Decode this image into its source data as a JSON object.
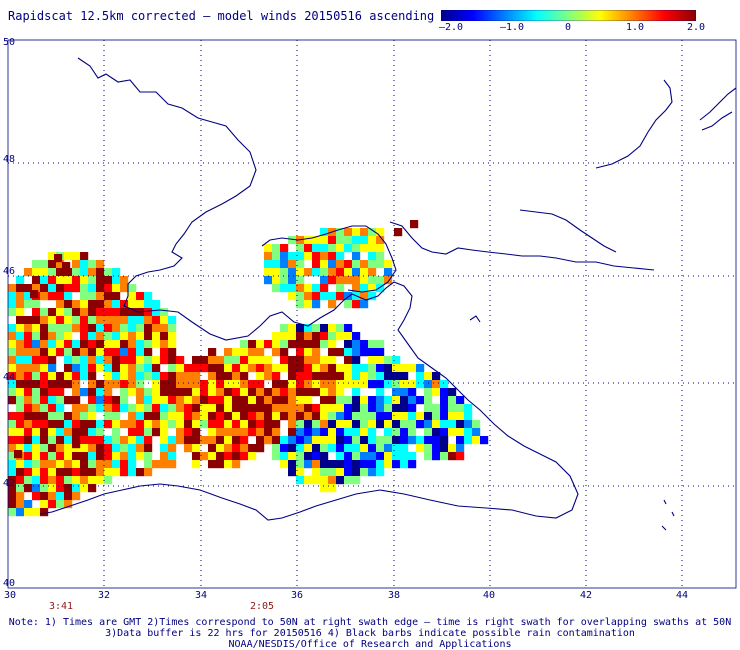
{
  "title": "Rapidscat 12.5km corrected – model winds 20150516 ascending",
  "colorbar": {
    "ticks": [
      "–2.0",
      "–1.0",
      "0",
      "1.0",
      "2.0"
    ],
    "colors": [
      "#00008b",
      "#0000ff",
      "#0080ff",
      "#00ffff",
      "#80ff80",
      "#ffff00",
      "#ff8000",
      "#ff0000",
      "#8b0000"
    ]
  },
  "axes": {
    "lon_labels": [
      "30",
      "32",
      "34",
      "36",
      "38",
      "40",
      "42",
      "44"
    ],
    "lat_labels": [
      "40",
      "42",
      "44",
      "46",
      "48",
      "50"
    ]
  },
  "times": [
    "3:41",
    "2:05"
  ],
  "notes": [
    "Note: 1) Times are GMT 2)Times correspond to 50N at right swath edge – time is right swath for overlapping swaths at 50N",
    "3)Data buffer is 22 hrs for 20150516 4) Black barbs indicate possible rain contamination",
    "NOAA/NESDIS/Office of Research and Applications"
  ]
}
